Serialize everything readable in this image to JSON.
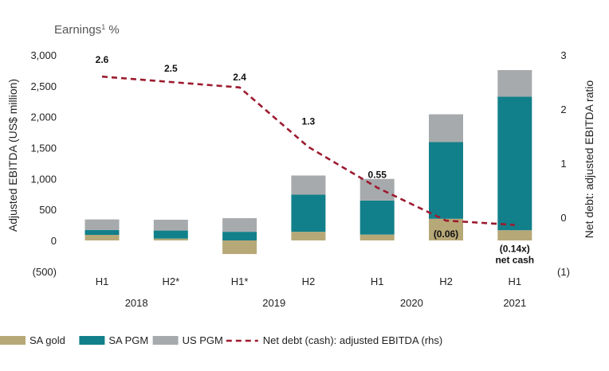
{
  "chart_data": {
    "type": "bar",
    "stacked": true,
    "title": "Earnings",
    "title_footnote": "1",
    "title_suffix": " %",
    "ylabel": "Adjusted EBITDA (US$ million)",
    "y2label": "Net debt: adjusted EBITDA ratio",
    "ylim": [
      -500,
      3000
    ],
    "y2lim": [
      -1,
      3
    ],
    "yticks": [
      "3,000",
      "2,500",
      "2,000",
      "1,500",
      "1,000",
      "500",
      "0",
      "(500)"
    ],
    "ytick_values": [
      3000,
      2500,
      2000,
      1500,
      1000,
      500,
      0,
      -500
    ],
    "y2ticks": [
      "3",
      "2",
      "1",
      "0",
      "(1)"
    ],
    "y2tick_values": [
      3,
      2,
      1,
      0,
      -1
    ],
    "categories": [
      "H1",
      "H2*",
      "H1*",
      "H2",
      "H1",
      "H2",
      "H1"
    ],
    "years": [
      {
        "label": "2018",
        "span": [
          0,
          1
        ]
      },
      {
        "label": "2019",
        "span": [
          2,
          3
        ]
      },
      {
        "label": "2020",
        "span": [
          4,
          5
        ]
      },
      {
        "label": "2021",
        "span": [
          6,
          6
        ]
      }
    ],
    "series": [
      {
        "name": "SA gold",
        "color": "#b7a877",
        "values": [
          90,
          30,
          -220,
          140,
          95,
          350,
          165
        ]
      },
      {
        "name": "SA PGM",
        "color": "#12808a",
        "values": [
          80,
          130,
          140,
          600,
          550,
          1240,
          2160
        ]
      },
      {
        "name": "US PGM",
        "color": "#a7aaac",
        "values": [
          170,
          175,
          220,
          310,
          350,
          450,
          430
        ]
      }
    ],
    "line": {
      "name": "Net debt (cash): adjusted EBITDA (rhs)",
      "color": "#9c1b2f",
      "values": [
        2.6,
        2.5,
        2.4,
        1.3,
        0.55,
        -0.06,
        -0.14
      ],
      "labels": [
        "2.6",
        "2.5",
        "2.4",
        "1.3",
        "0.55",
        "(0.06)",
        "(0.14x)"
      ],
      "extra_label": "net cash"
    }
  }
}
